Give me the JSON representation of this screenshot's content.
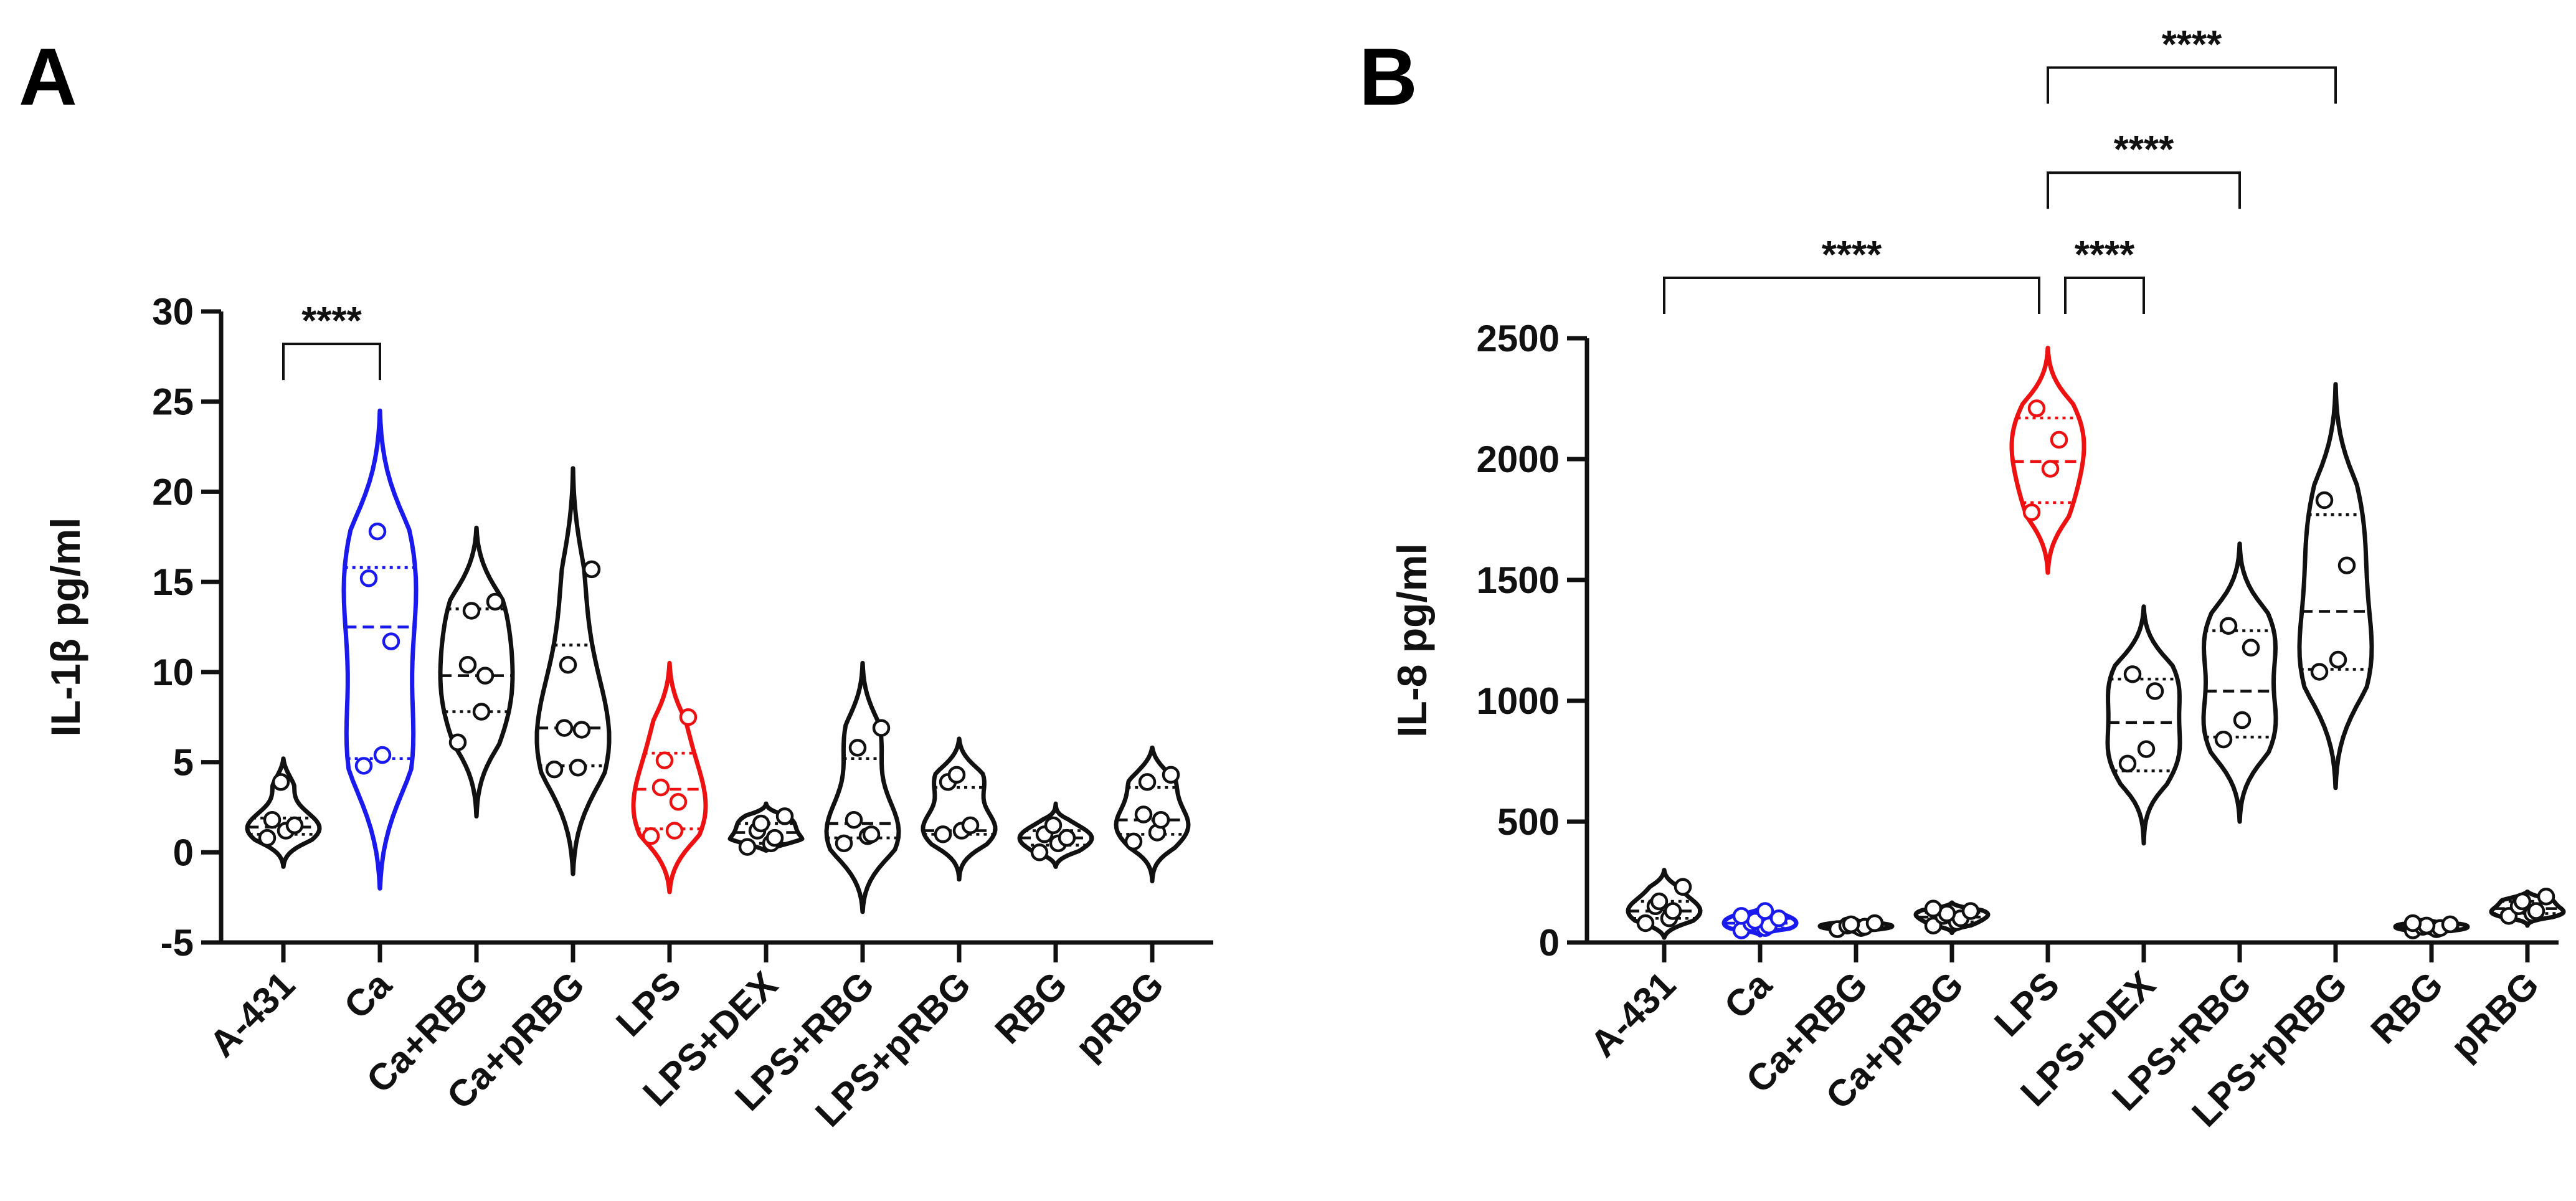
{
  "figure": {
    "panels": [
      "A",
      "B"
    ]
  },
  "colors": {
    "default": "#111111",
    "ca": "#1a1aee",
    "lps": "#ee1111"
  },
  "chart_data": [
    {
      "panel": "A",
      "type": "violin",
      "title": "",
      "xlabel": "",
      "ylabel": "IL-1β pg/ml",
      "ylim": [
        -5,
        30
      ],
      "yticks": [
        -5,
        0,
        5,
        10,
        15,
        20,
        25,
        30
      ],
      "categories": [
        "A-431",
        "Ca",
        "Ca+RBG",
        "Ca+pRBG",
        "LPS",
        "LPS+DEX",
        "LPS+RBG",
        "LPS+pRBG",
        "RBG",
        "pRBG"
      ],
      "category_colors": [
        "default",
        "ca",
        "default",
        "default",
        "lps",
        "default",
        "default",
        "default",
        "default",
        "default"
      ],
      "groups": [
        {
          "name": "A-431",
          "points": [
            0.8,
            1.2,
            1.5,
            1.8,
            3.9
          ],
          "median": 1.4,
          "q1": 1.0,
          "q3": 1.9,
          "min": -0.8,
          "max": 5.2
        },
        {
          "name": "Ca",
          "points": [
            4.8,
            5.4,
            11.7,
            15.2,
            17.8
          ],
          "median": 12.5,
          "q1": 5.2,
          "q3": 15.8,
          "min": -2.0,
          "max": 24.5
        },
        {
          "name": "Ca+RBG",
          "points": [
            6.1,
            7.8,
            9.8,
            10.4,
            13.4,
            13.9
          ],
          "median": 9.8,
          "q1": 7.8,
          "q3": 13.5,
          "min": 2.0,
          "max": 18.0
        },
        {
          "name": "Ca+pRBG",
          "points": [
            4.6,
            4.7,
            6.8,
            6.9,
            10.4,
            15.7
          ],
          "median": 6.9,
          "q1": 4.8,
          "q3": 11.5,
          "min": -1.2,
          "max": 21.3
        },
        {
          "name": "LPS",
          "points": [
            0.9,
            1.2,
            2.8,
            3.6,
            5.1,
            7.5
          ],
          "median": 3.5,
          "q1": 1.3,
          "q3": 5.5,
          "min": -2.2,
          "max": 10.5
        },
        {
          "name": "LPS+DEX",
          "points": [
            0.3,
            0.5,
            0.8,
            1.2,
            1.6,
            2.0
          ],
          "median": 1.1,
          "q1": 0.5,
          "q3": 1.6,
          "min": 0.1,
          "max": 2.7
        },
        {
          "name": "LPS+RBG",
          "points": [
            0.5,
            0.9,
            1.0,
            1.8,
            5.8,
            6.9
          ],
          "median": 1.6,
          "q1": 0.8,
          "q3": 5.2,
          "min": -3.3,
          "max": 10.5
        },
        {
          "name": "LPS+pRBG",
          "points": [
            1.0,
            1.2,
            1.5,
            3.9,
            4.3
          ],
          "median": 1.2,
          "q1": 1.0,
          "q3": 3.6,
          "min": -1.5,
          "max": 6.3
        },
        {
          "name": "RBG",
          "points": [
            0.0,
            0.5,
            0.8,
            1.0,
            1.5
          ],
          "median": 0.8,
          "q1": 0.4,
          "q3": 1.2,
          "min": -0.8,
          "max": 2.7
        },
        {
          "name": "pRBG",
          "points": [
            0.6,
            1.1,
            1.8,
            2.1,
            3.9,
            4.3
          ],
          "median": 1.8,
          "q1": 1.0,
          "q3": 3.6,
          "min": -1.6,
          "max": 5.8
        }
      ],
      "significance": [
        {
          "from": "A-431",
          "to": "Ca",
          "label": "****",
          "bracket_y": 28.2
        }
      ]
    },
    {
      "panel": "B",
      "type": "violin",
      "title": "",
      "xlabel": "",
      "ylabel": "IL-8 pg/ml",
      "ylim": [
        0,
        2500
      ],
      "yticks": [
        0,
        500,
        1000,
        1500,
        2000,
        2500
      ],
      "categories": [
        "A-431",
        "Ca",
        "Ca+RBG",
        "Ca+pRBG",
        "LPS",
        "LPS+DEX",
        "LPS+RBG",
        "LPS+pRBG",
        "RBG",
        "pRBG"
      ],
      "category_colors": [
        "default",
        "ca",
        "default",
        "default",
        "lps",
        "default",
        "default",
        "default",
        "default",
        "default"
      ],
      "groups": [
        {
          "name": "A-431",
          "points": [
            80,
            100,
            130,
            150,
            170,
            230
          ],
          "median": 130,
          "q1": 100,
          "q3": 170,
          "min": 20,
          "max": 300
        },
        {
          "name": "Ca",
          "points": [
            50,
            60,
            70,
            80,
            90,
            100,
            110,
            130
          ],
          "median": 80,
          "q1": 60,
          "q3": 100,
          "min": 30,
          "max": 140
        },
        {
          "name": "Ca+RBG",
          "points": [
            55,
            60,
            65,
            70,
            75,
            80
          ],
          "median": 68,
          "q1": 60,
          "q3": 75,
          "min": 40,
          "max": 95
        },
        {
          "name": "Ca+pRBG",
          "points": [
            70,
            85,
            100,
            110,
            120,
            130,
            140
          ],
          "median": 105,
          "q1": 85,
          "q3": 125,
          "min": 40,
          "max": 165
        },
        {
          "name": "LPS",
          "points": [
            1780,
            1960,
            2080,
            2210
          ],
          "median": 1990,
          "q1": 1820,
          "q3": 2170,
          "min": 1530,
          "max": 2460
        },
        {
          "name": "LPS+DEX",
          "points": [
            740,
            800,
            1040,
            1110
          ],
          "median": 910,
          "q1": 710,
          "q3": 1090,
          "min": 410,
          "max": 1390
        },
        {
          "name": "LPS+RBG",
          "points": [
            840,
            920,
            1220,
            1310
          ],
          "median": 1040,
          "q1": 850,
          "q3": 1290,
          "min": 500,
          "max": 1650
        },
        {
          "name": "LPS+pRBG",
          "points": [
            1120,
            1170,
            1560,
            1830
          ],
          "median": 1370,
          "q1": 1130,
          "q3": 1770,
          "min": 640,
          "max": 2310
        },
        {
          "name": "RBG",
          "points": [
            50,
            55,
            60,
            65,
            70,
            75,
            80
          ],
          "median": 62,
          "q1": 55,
          "q3": 70,
          "min": 35,
          "max": 90
        },
        {
          "name": "pRBG",
          "points": [
            110,
            120,
            130,
            150,
            170,
            190
          ],
          "median": 140,
          "q1": 120,
          "q3": 170,
          "min": 70,
          "max": 210
        }
      ],
      "significance": [
        {
          "from": "A-431",
          "to": "LPS",
          "label": "****",
          "bracket_y": 2750
        },
        {
          "from": "LPS",
          "to": "LPS+DEX",
          "label": "****",
          "bracket_y": 2750
        },
        {
          "from": "LPS",
          "to": "LPS+RBG",
          "label": "****",
          "bracket_y": 3185
        },
        {
          "from": "LPS",
          "to": "LPS+pRBG",
          "label": "****",
          "bracket_y": 3620
        }
      ]
    }
  ]
}
